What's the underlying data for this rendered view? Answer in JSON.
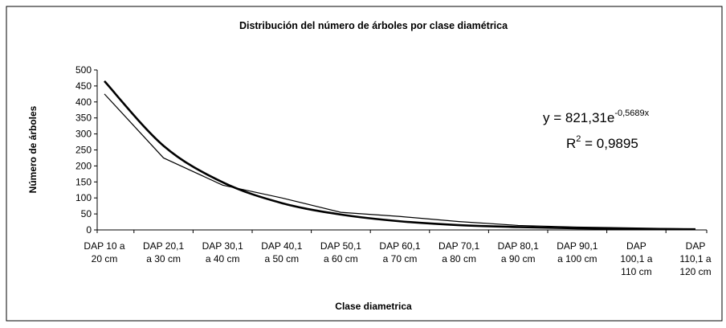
{
  "chart_data": {
    "type": "line",
    "title": "Distribución del número de árboles por clase diamétrica",
    "xlabel": "Clase diametrica",
    "ylabel": "Número de árboles",
    "categories": [
      "DAP 10 a\n20 cm",
      "DAP 20,1\na 30 cm",
      "DAP 30,1\na 40 cm",
      "DAP 40,1\na 50 cm",
      "DAP 50,1\na 60 cm",
      "DAP 60,1\na 70 cm",
      "DAP 70,1\na 80 cm",
      "DAP 80,1\na 90 cm",
      "DAP 90,1\na 100 cm",
      "DAP\n100,1 a\n110 cm",
      "DAP\n110,1 a\n120 cm"
    ],
    "series": [
      {
        "color": "#000000",
        "width": 1.2,
        "values": [
          425,
          225,
          140,
          100,
          55,
          42,
          26,
          14,
          9,
          6,
          3
        ]
      },
      {
        "color": "#000000",
        "width": 2.6,
        "values": [
          465,
          263,
          149,
          84,
          48,
          27,
          15,
          9,
          5,
          3,
          2
        ]
      }
    ],
    "annotations": [
      {
        "text": "y = 821,31e",
        "sup": "-0,5689x"
      },
      {
        "text": "R",
        "sup": "2",
        "tail": " = 0,9895"
      }
    ],
    "ylim": [
      0,
      500
    ],
    "yticks": [
      0,
      50,
      100,
      150,
      200,
      250,
      300,
      350,
      400,
      450,
      500
    ]
  }
}
